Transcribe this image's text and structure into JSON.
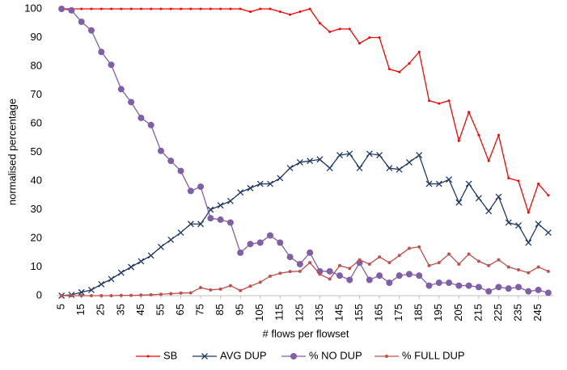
{
  "chart_data": {
    "type": "line",
    "xlabel": "# flows per flowset",
    "ylabel": "normalised percentage",
    "x": [
      5,
      10,
      15,
      20,
      25,
      30,
      35,
      40,
      45,
      50,
      55,
      60,
      65,
      70,
      75,
      80,
      85,
      90,
      95,
      100,
      105,
      110,
      115,
      120,
      125,
      130,
      135,
      140,
      145,
      150,
      155,
      160,
      165,
      170,
      175,
      180,
      185,
      190,
      195,
      200,
      205,
      210,
      215,
      220,
      225,
      230,
      235,
      240,
      245,
      250
    ],
    "xlim": [
      2.5,
      252.5
    ],
    "xticks": [
      5,
      15,
      25,
      35,
      45,
      55,
      65,
      75,
      85,
      95,
      105,
      115,
      125,
      135,
      145,
      155,
      165,
      175,
      185,
      195,
      205,
      215,
      225,
      235,
      245
    ],
    "ylim": [
      0,
      100
    ],
    "yticks": [
      0,
      10,
      20,
      30,
      40,
      50,
      60,
      70,
      80,
      90,
      100
    ],
    "grid": false,
    "legend": "bottom",
    "series": [
      {
        "name": "SB",
        "color": "#ff0000",
        "marker": "dot",
        "values": [
          100,
          100,
          100,
          100,
          100,
          100,
          100,
          100,
          100,
          100,
          100,
          100,
          100,
          100,
          100,
          100,
          100,
          100,
          100,
          99,
          100,
          100,
          99,
          98,
          99,
          100,
          95,
          92,
          93,
          93,
          88,
          90,
          90,
          79,
          78,
          81,
          85,
          68,
          67,
          68,
          54,
          64,
          56,
          47,
          56,
          41,
          40,
          29,
          39,
          35
        ]
      },
      {
        "name": "AVG DUP",
        "color": "#1f3864",
        "marker": "x",
        "values": [
          0,
          0.3,
          1.2,
          2,
          4,
          5.8,
          8,
          10,
          12,
          14,
          17,
          19.5,
          22,
          25,
          25,
          30,
          31.5,
          33,
          36,
          37.5,
          39,
          39,
          41,
          44.5,
          46.5,
          47,
          47.5,
          44.5,
          49,
          49.5,
          44.5,
          49.5,
          49,
          44.5,
          44,
          46.5,
          49,
          39,
          39,
          40.5,
          32.5,
          39,
          34,
          29.5,
          34.5,
          25.5,
          24.5,
          18.5,
          25,
          22
        ]
      },
      {
        "name": "% NO DUP",
        "color": "#7f5fa8",
        "marker": "circle",
        "values": [
          100,
          99.5,
          95.5,
          92.5,
          85,
          80.5,
          72,
          67.5,
          62,
          59.5,
          50.5,
          47,
          43.5,
          36.5,
          38,
          27,
          26.5,
          25.5,
          15,
          18,
          18.5,
          21,
          18.5,
          13.5,
          11,
          15,
          8.5,
          8.5,
          7,
          5.5,
          11.5,
          5.5,
          7,
          4.5,
          7,
          7.5,
          7,
          3.5,
          4.5,
          4.5,
          3.5,
          3.5,
          3,
          1.5,
          3,
          2.5,
          3,
          1.5,
          2,
          1
        ]
      },
      {
        "name": "% FULL DUP",
        "color": "#c0504d",
        "marker": "small-circle",
        "values": [
          0,
          0,
          0,
          0,
          0,
          0,
          0.1,
          0.1,
          0.2,
          0.3,
          0.5,
          0.7,
          0.9,
          1,
          2.8,
          2,
          2.3,
          3.5,
          1.8,
          3.3,
          4.7,
          6.8,
          7.8,
          8.4,
          8.5,
          11.5,
          7.5,
          5.8,
          10.5,
          9.5,
          12.5,
          11,
          13.5,
          11.5,
          14,
          16.5,
          17,
          10.5,
          11.5,
          14.5,
          11,
          14.5,
          12,
          10.5,
          12.5,
          10,
          9,
          8,
          10,
          8.5
        ]
      }
    ]
  }
}
